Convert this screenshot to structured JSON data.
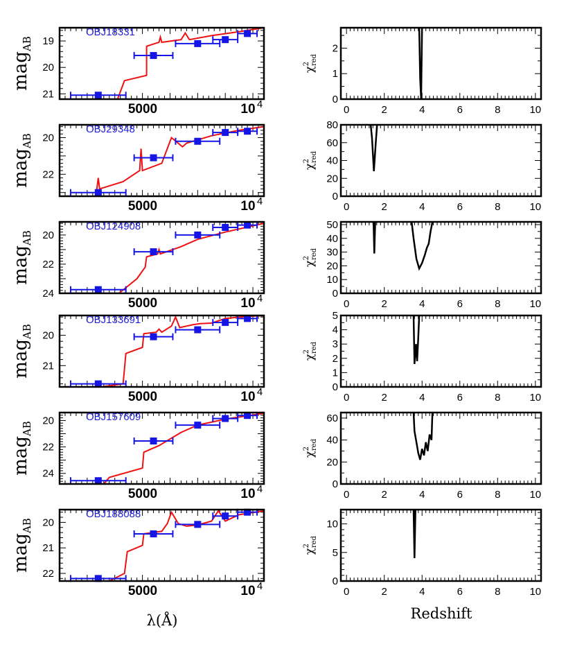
{
  "colors": {
    "sed_model": "#ee1111",
    "photometry": "#1515e6",
    "chi2": "#000000",
    "object_label": "#1f1fdc"
  },
  "left_ylabel": "mag",
  "left_ylabel_sub": "AB",
  "left_xlabel": "λ(Å)",
  "left_xticks": [
    "5000",
    "10"
  ],
  "left_xtick_exp": "4",
  "right_ylabel": "χ",
  "right_ylabel_sup": "2",
  "right_ylabel_sub": "red",
  "right_xlabel": "Redshift",
  "right_xticks": [
    "0",
    "2",
    "4",
    "6",
    "8",
    "10"
  ],
  "chart_data": [
    {
      "type": "line",
      "panel": "sed",
      "object": "OBJ18331",
      "xlim": [
        3000,
        10400
      ],
      "ylim": [
        21.2,
        18.5
      ],
      "yticks": [
        "19",
        "20",
        "21"
      ],
      "model": [
        [
          5100,
          21.2
        ],
        [
          5350,
          20.5
        ],
        [
          6150,
          20.3
        ],
        [
          6150,
          19.2
        ],
        [
          6600,
          19.05
        ],
        [
          6650,
          18.85
        ],
        [
          6700,
          19.05
        ],
        [
          7400,
          18.95
        ],
        [
          7550,
          18.7
        ],
        [
          7700,
          18.95
        ],
        [
          8500,
          18.8
        ],
        [
          9500,
          18.65
        ],
        [
          10400,
          18.5
        ]
      ],
      "photometry": [
        {
          "x": 4400,
          "y": 21.05,
          "xerr": 1000
        },
        {
          "x": 6400,
          "y": 19.55,
          "xerr": 700
        },
        {
          "x": 8000,
          "y": 19.1,
          "xerr": 800
        },
        {
          "x": 9000,
          "y": 18.95,
          "xerr": 450
        },
        {
          "x": 9800,
          "y": 18.72,
          "xerr": 350
        }
      ]
    },
    {
      "type": "line",
      "panel": "sed",
      "object": "OBJ29348",
      "xlim": [
        3000,
        10400
      ],
      "ylim": [
        23.2,
        19.3
      ],
      "yticks": [
        "20",
        "22"
      ],
      "model": [
        [
          4300,
          23.2
        ],
        [
          4350,
          22.8
        ],
        [
          4400,
          22.2
        ],
        [
          4450,
          22.8
        ],
        [
          5300,
          22.4
        ],
        [
          5900,
          21.8
        ],
        [
          5950,
          20.6
        ],
        [
          6000,
          21.8
        ],
        [
          6700,
          21.4
        ],
        [
          7050,
          20.0
        ],
        [
          7450,
          20.5
        ],
        [
          7600,
          20.3
        ],
        [
          8500,
          19.9
        ],
        [
          9500,
          19.6
        ],
        [
          10400,
          19.4
        ]
      ],
      "photometry": [
        {
          "x": 4400,
          "y": 23.0,
          "xerr": 1000
        },
        {
          "x": 6400,
          "y": 21.1,
          "xerr": 700
        },
        {
          "x": 8000,
          "y": 20.2,
          "xerr": 800
        },
        {
          "x": 9000,
          "y": 19.72,
          "xerr": 450
        },
        {
          "x": 9800,
          "y": 19.65,
          "xerr": 350
        }
      ]
    },
    {
      "type": "line",
      "panel": "sed",
      "object": "OBJ124908",
      "xlim": [
        3000,
        10400
      ],
      "ylim": [
        24.0,
        19.1
      ],
      "yticks": [
        "20",
        "22",
        "24"
      ],
      "model": [
        [
          5150,
          24.0
        ],
        [
          5800,
          23.0
        ],
        [
          6100,
          22.2
        ],
        [
          6150,
          21.5
        ],
        [
          6550,
          21.3
        ],
        [
          6600,
          21.0
        ],
        [
          6650,
          21.3
        ],
        [
          7400,
          20.8
        ],
        [
          8000,
          20.3
        ],
        [
          9000,
          19.8
        ],
        [
          10400,
          19.2
        ]
      ],
      "photometry": [
        {
          "x": 4400,
          "y": 23.75,
          "xerr": 1000
        },
        {
          "x": 6400,
          "y": 21.15,
          "xerr": 700
        },
        {
          "x": 8000,
          "y": 20.0,
          "xerr": 800
        },
        {
          "x": 9000,
          "y": 19.48,
          "xerr": 450
        },
        {
          "x": 9800,
          "y": 19.32,
          "xerr": 350
        }
      ]
    },
    {
      "type": "line",
      "panel": "sed",
      "object": "OBJ133691",
      "xlim": [
        3000,
        10400
      ],
      "ylim": [
        21.7,
        19.35
      ],
      "yticks": [
        "20",
        "21"
      ],
      "model": [
        [
          4500,
          21.7
        ],
        [
          5300,
          21.6
        ],
        [
          5400,
          20.6
        ],
        [
          6000,
          20.4
        ],
        [
          6050,
          19.95
        ],
        [
          6500,
          19.9
        ],
        [
          6600,
          19.8
        ],
        [
          6700,
          19.9
        ],
        [
          7050,
          19.7
        ],
        [
          7200,
          19.4
        ],
        [
          7350,
          19.75
        ],
        [
          7850,
          19.65
        ],
        [
          8100,
          19.62
        ],
        [
          8500,
          19.6
        ],
        [
          9000,
          19.45
        ],
        [
          9500,
          19.4
        ],
        [
          10400,
          19.35
        ]
      ],
      "photometry": [
        {
          "x": 4400,
          "y": 21.6,
          "xerr": 1000
        },
        {
          "x": 6400,
          "y": 20.05,
          "xerr": 700
        },
        {
          "x": 8000,
          "y": 19.82,
          "xerr": 800
        },
        {
          "x": 9000,
          "y": 19.58,
          "xerr": 450
        },
        {
          "x": 9800,
          "y": 19.45,
          "xerr": 350
        }
      ]
    },
    {
      "type": "line",
      "panel": "sed",
      "object": "OBJ157609",
      "xlim": [
        3000,
        10400
      ],
      "ylim": [
        24.8,
        19.4
      ],
      "yticks": [
        "20",
        "22",
        "24"
      ],
      "model": [
        [
          4600,
          24.8
        ],
        [
          4800,
          24.3
        ],
        [
          6000,
          23.6
        ],
        [
          6050,
          22.4
        ],
        [
          6600,
          21.9
        ],
        [
          7400,
          20.9
        ],
        [
          8000,
          20.35
        ],
        [
          9000,
          19.9
        ],
        [
          10400,
          19.45
        ]
      ],
      "photometry": [
        {
          "x": 4400,
          "y": 24.55,
          "xerr": 1000
        },
        {
          "x": 6400,
          "y": 21.55,
          "xerr": 700
        },
        {
          "x": 8000,
          "y": 20.35,
          "xerr": 800
        },
        {
          "x": 9000,
          "y": 19.85,
          "xerr": 450
        },
        {
          "x": 9800,
          "y": 19.62,
          "xerr": 350
        }
      ]
    },
    {
      "type": "line",
      "panel": "sed",
      "object": "OBJ188088",
      "xlim": [
        3000,
        10400
      ],
      "ylim": [
        22.3,
        19.5
      ],
      "yticks": [
        "20",
        "21",
        "22"
      ],
      "model": [
        [
          4800,
          22.3
        ],
        [
          5350,
          22.0
        ],
        [
          5450,
          21.15
        ],
        [
          6000,
          20.9
        ],
        [
          6050,
          20.45
        ],
        [
          6700,
          20.35
        ],
        [
          6900,
          20.05
        ],
        [
          7050,
          19.6
        ],
        [
          7300,
          20.05
        ],
        [
          7600,
          20.15
        ],
        [
          8000,
          20.1
        ],
        [
          8500,
          19.95
        ],
        [
          8750,
          19.55
        ],
        [
          9000,
          19.95
        ],
        [
          9500,
          19.7
        ],
        [
          10400,
          19.55
        ]
      ],
      "photometry": [
        {
          "x": 4400,
          "y": 22.2,
          "xerr": 1000
        },
        {
          "x": 6400,
          "y": 20.45,
          "xerr": 700
        },
        {
          "x": 8000,
          "y": 20.08,
          "xerr": 800
        },
        {
          "x": 9000,
          "y": 19.75,
          "xerr": 450
        },
        {
          "x": 9800,
          "y": 19.6,
          "xerr": 350
        }
      ]
    },
    {
      "type": "line",
      "panel": "chi2",
      "object": "OBJ18331",
      "xlim": [
        -0.3,
        10.3
      ],
      "ylim": [
        0,
        2.8
      ],
      "yticks": [
        0,
        1,
        2
      ],
      "ytick_step": 0.5,
      "curves": [
        [
          [
            3.85,
            2.8
          ],
          [
            3.9,
            0.8
          ],
          [
            3.95,
            0.0
          ],
          [
            4.0,
            2.8
          ]
        ]
      ]
    },
    {
      "type": "line",
      "panel": "chi2",
      "object": "OBJ29348",
      "xlim": [
        -0.3,
        10.3
      ],
      "ylim": [
        0,
        80
      ],
      "yticks": [
        0,
        20,
        40,
        60,
        80
      ],
      "ytick_step": 10,
      "curves": [
        [
          [
            1.28,
            80
          ],
          [
            1.35,
            65
          ],
          [
            1.45,
            28
          ],
          [
            1.55,
            60
          ],
          [
            1.62,
            80
          ]
        ]
      ]
    },
    {
      "type": "line",
      "panel": "chi2",
      "object": "OBJ124908",
      "xlim": [
        -0.3,
        10.3
      ],
      "ylim": [
        0,
        52
      ],
      "yticks": [
        0,
        10,
        20,
        30,
        40,
        50
      ],
      "ytick_step": 5,
      "curves": [
        [
          [
            1.43,
            52
          ],
          [
            1.47,
            29
          ],
          [
            1.52,
            52
          ]
        ],
        [
          [
            3.45,
            52
          ],
          [
            3.55,
            40
          ],
          [
            3.7,
            25
          ],
          [
            3.85,
            18
          ],
          [
            4.0,
            22
          ],
          [
            4.15,
            28
          ],
          [
            4.25,
            33
          ],
          [
            4.35,
            36
          ],
          [
            4.45,
            45
          ],
          [
            4.55,
            52
          ]
        ]
      ]
    },
    {
      "type": "line",
      "panel": "chi2",
      "object": "OBJ133691",
      "xlim": [
        -0.3,
        10.3
      ],
      "ylim": [
        0,
        5
      ],
      "yticks": [
        0,
        1,
        2,
        3,
        4,
        5
      ],
      "ytick_step": 0.5,
      "curves": [
        [
          [
            3.55,
            5
          ],
          [
            3.6,
            1.6
          ],
          [
            3.68,
            3.0
          ],
          [
            3.74,
            1.8
          ],
          [
            3.8,
            3.5
          ],
          [
            3.85,
            5
          ]
        ]
      ]
    },
    {
      "type": "line",
      "panel": "chi2",
      "object": "OBJ157609",
      "xlim": [
        -0.3,
        10.3
      ],
      "ylim": [
        0,
        65
      ],
      "yticks": [
        0,
        20,
        40,
        60
      ],
      "ytick_step": 10,
      "curves": [
        [
          [
            3.55,
            65
          ],
          [
            3.6,
            48
          ],
          [
            3.7,
            38
          ],
          [
            3.8,
            28
          ],
          [
            3.9,
            22
          ],
          [
            4.0,
            32
          ],
          [
            4.1,
            26
          ],
          [
            4.2,
            38
          ],
          [
            4.3,
            30
          ],
          [
            4.4,
            45
          ],
          [
            4.5,
            40
          ],
          [
            4.55,
            65
          ]
        ]
      ]
    },
    {
      "type": "line",
      "panel": "chi2",
      "object": "OBJ188088",
      "xlim": [
        -0.3,
        10.3
      ],
      "ylim": [
        0,
        12.5
      ],
      "yticks": [
        0,
        5,
        10
      ],
      "ytick_step": 1,
      "curves": [
        [
          [
            3.55,
            12.5
          ],
          [
            3.6,
            4
          ],
          [
            3.65,
            12.5
          ]
        ]
      ]
    }
  ]
}
